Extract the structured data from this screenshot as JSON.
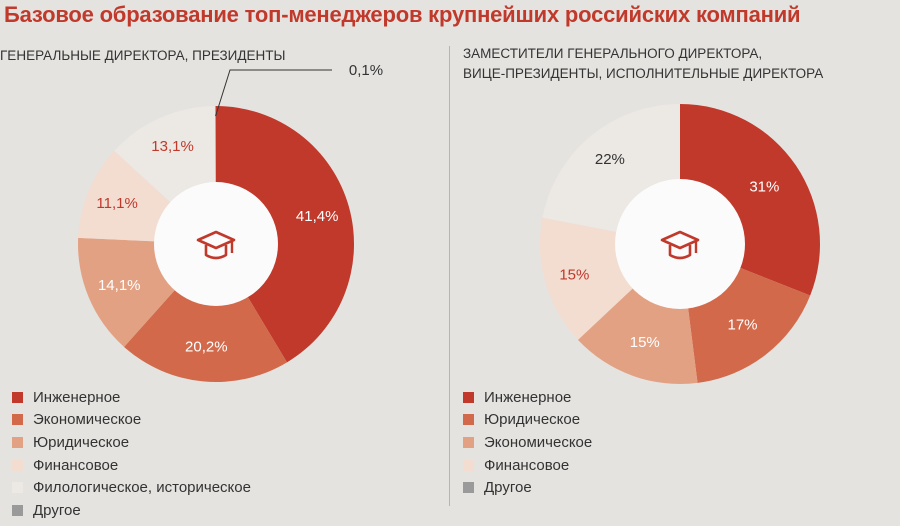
{
  "title": "Базовое образование топ-менеджеров крупнейших российских компаний",
  "colors": {
    "eng": "#c0392b",
    "econ": "#d2694a",
    "law": "#e3a183",
    "fin": "#f3dcd0",
    "phil": "#ece8e4",
    "other": "#9a9a9a",
    "center": "#fbfbfb",
    "icon": "#c0392b"
  },
  "chart_data": [
    {
      "type": "pie",
      "title": "ГЕНЕРАЛЬНЫЕ ДИРЕКТОРА, ПРЕЗИДЕНТЫ",
      "slices": [
        {
          "label": "Инженерное",
          "value": 41.4,
          "display": "41,4%",
          "color": "#c0392b"
        },
        {
          "label": "Экономическое",
          "value": 20.2,
          "display": "20,2%",
          "color": "#d2694a"
        },
        {
          "label": "Юридическое",
          "value": 14.1,
          "display": "14,1%",
          "color": "#e3a183"
        },
        {
          "label": "Финансовое",
          "value": 11.1,
          "display": "11,1%",
          "color": "#f3dcd0"
        },
        {
          "label": "Филологическое, историческое",
          "value": 13.1,
          "display": "13,1%",
          "color": "#ece8e4"
        },
        {
          "label": "Другое",
          "value": 0.1,
          "display": "0,1%",
          "color": "#9a9a9a"
        }
      ]
    },
    {
      "type": "pie",
      "title": "ЗАМЕСТИТЕЛИ ГЕНЕРАЛЬНОГО ДИРЕКТОРА, ВИЦЕ-ПРЕЗИДЕНТЫ, ИСПОЛНИТЕЛЬНЫЕ ДИРЕКТОРА",
      "title_lines": [
        "ЗАМЕСТИТЕЛИ ГЕНЕРАЛЬНОГО ДИРЕКТОРА,",
        "ВИЦЕ-ПРЕЗИДЕНТЫ, ИСПОЛНИТЕЛЬНЫЕ ДИРЕКТОРА"
      ],
      "slices": [
        {
          "label": "Инженерное",
          "value": 31,
          "display": "31%",
          "color": "#c0392b"
        },
        {
          "label": "Юридическое",
          "value": 17,
          "display": "17%",
          "color": "#d2694a"
        },
        {
          "label": "Экономическое",
          "value": 15,
          "display": "15%",
          "color": "#e3a183"
        },
        {
          "label": "Финансовое",
          "value": 15,
          "display": "15%",
          "color": "#f3dcd0"
        },
        {
          "label": "Другое",
          "value": 22,
          "display": "22%",
          "color": "#ece8e4"
        }
      ],
      "legend": [
        {
          "label": "Инженерное",
          "color": "#c0392b"
        },
        {
          "label": "Юридическое",
          "color": "#d2694a"
        },
        {
          "label": "Экономическое",
          "color": "#e3a183"
        },
        {
          "label": "Финансовое",
          "color": "#f3dcd0"
        },
        {
          "label": "Другое",
          "color": "#9a9a9a"
        }
      ]
    }
  ]
}
